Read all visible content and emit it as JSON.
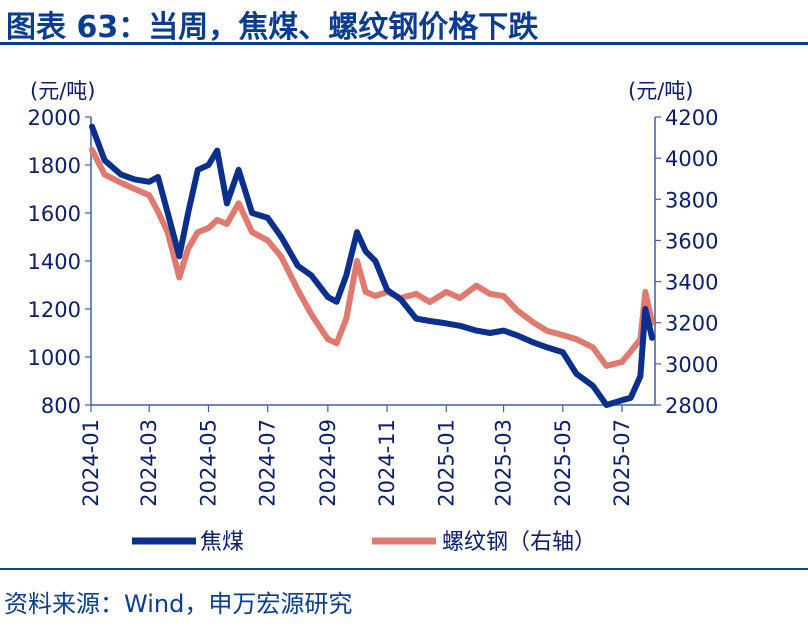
{
  "title": "图表 63：当周，焦煤、螺纹钢价格下跌",
  "source": "资料来源：Wind，申万宏源研究",
  "colors": {
    "title": "#0a3d91",
    "coking_coal": "#0a2f8c",
    "rebar": "#e07a6e",
    "axis": "#3b5fae",
    "text": "#0b1e6e"
  },
  "chart_data": {
    "type": "line",
    "ylabel_left": "(元/吨)",
    "ylabel_right": "(元/吨)",
    "ylim_left": [
      800,
      2000
    ],
    "ylim_right": [
      2800,
      4200
    ],
    "yticks_left": [
      "2000",
      "1800",
      "1600",
      "1400",
      "1200",
      "1000",
      "800"
    ],
    "yticks_right": [
      "4200",
      "4000",
      "3800",
      "3600",
      "3400",
      "3200",
      "3000",
      "2800"
    ],
    "xticks": [
      "2024-01",
      "2024-03",
      "2024-05",
      "2024-07",
      "2024-09",
      "2024-11",
      "2025-01",
      "2025-03",
      "2025-05",
      "2025-07"
    ],
    "legend_position": "bottom",
    "series": [
      {
        "name": "焦煤",
        "axis": "left",
        "x": [
          "2024-01-02",
          "2024-01-15",
          "2024-02-01",
          "2024-02-15",
          "2024-03-01",
          "2024-03-10",
          "2024-03-20",
          "2024-04-01",
          "2024-04-10",
          "2024-04-20",
          "2024-05-01",
          "2024-05-10",
          "2024-05-20",
          "2024-06-01",
          "2024-06-15",
          "2024-07-01",
          "2024-07-15",
          "2024-08-01",
          "2024-08-15",
          "2024-09-01",
          "2024-09-10",
          "2024-09-20",
          "2024-10-01",
          "2024-10-10",
          "2024-10-20",
          "2024-11-01",
          "2024-11-15",
          "2024-12-01",
          "2024-12-15",
          "2025-01-01",
          "2025-01-15",
          "2025-02-01",
          "2025-02-15",
          "2025-03-01",
          "2025-03-15",
          "2025-04-01",
          "2025-04-15",
          "2025-05-01",
          "2025-05-15",
          "2025-06-01",
          "2025-06-15",
          "2025-07-01",
          "2025-07-10",
          "2025-07-20",
          "2025-07-25",
          "2025-08-01"
        ],
        "values": [
          1960,
          1820,
          1760,
          1740,
          1730,
          1750,
          1600,
          1420,
          1600,
          1780,
          1800,
          1860,
          1640,
          1780,
          1600,
          1580,
          1500,
          1380,
          1340,
          1250,
          1230,
          1340,
          1520,
          1440,
          1400,
          1280,
          1240,
          1160,
          1150,
          1140,
          1130,
          1110,
          1100,
          1110,
          1090,
          1060,
          1040,
          1020,
          930,
          880,
          800,
          820,
          830,
          920,
          1200,
          1080
        ]
      },
      {
        "name": "螺纹钢（右轴）",
        "axis": "right",
        "x": [
          "2024-01-02",
          "2024-01-15",
          "2024-02-01",
          "2024-02-15",
          "2024-03-01",
          "2024-03-10",
          "2024-03-20",
          "2024-04-01",
          "2024-04-10",
          "2024-04-20",
          "2024-05-01",
          "2024-05-10",
          "2024-05-20",
          "2024-06-01",
          "2024-06-15",
          "2024-07-01",
          "2024-07-15",
          "2024-08-01",
          "2024-08-15",
          "2024-09-01",
          "2024-09-10",
          "2024-09-20",
          "2024-10-01",
          "2024-10-10",
          "2024-10-20",
          "2024-11-01",
          "2024-11-15",
          "2024-12-01",
          "2024-12-15",
          "2025-01-01",
          "2025-01-15",
          "2025-02-01",
          "2025-02-15",
          "2025-03-01",
          "2025-03-15",
          "2025-04-01",
          "2025-04-15",
          "2025-05-01",
          "2025-05-15",
          "2025-06-01",
          "2025-06-15",
          "2025-07-01",
          "2025-07-10",
          "2025-07-20",
          "2025-07-25",
          "2025-08-01"
        ],
        "values": [
          4040,
          3920,
          3880,
          3850,
          3820,
          3740,
          3640,
          3420,
          3560,
          3640,
          3660,
          3700,
          3680,
          3780,
          3640,
          3600,
          3520,
          3360,
          3240,
          3120,
          3100,
          3220,
          3500,
          3350,
          3330,
          3350,
          3320,
          3340,
          3300,
          3350,
          3320,
          3380,
          3340,
          3330,
          3260,
          3200,
          3160,
          3140,
          3120,
          3080,
          2990,
          3010,
          3060,
          3120,
          3350,
          3200
        ]
      }
    ]
  }
}
